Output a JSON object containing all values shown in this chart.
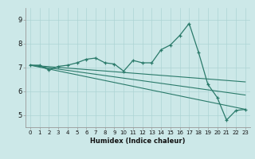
{
  "xlabel": "Humidex (Indice chaleur)",
  "background_color": "#cce8e8",
  "grid_color": "#add4d4",
  "line_color": "#2a7a6a",
  "xlim": [
    -0.5,
    23.5
  ],
  "ylim": [
    4.5,
    9.5
  ],
  "yticks": [
    5,
    6,
    7,
    8,
    9
  ],
  "xticks": [
    0,
    1,
    2,
    3,
    4,
    5,
    6,
    7,
    8,
    9,
    10,
    11,
    12,
    13,
    14,
    15,
    16,
    17,
    18,
    19,
    20,
    21,
    22,
    23
  ],
  "main_series_x": [
    0,
    1,
    2,
    3,
    4,
    5,
    6,
    7,
    8,
    9,
    10,
    11,
    12,
    13,
    14,
    15,
    16,
    17,
    18,
    19,
    20,
    21,
    22,
    23
  ],
  "main_series_y": [
    7.1,
    7.1,
    6.9,
    7.05,
    7.1,
    7.2,
    7.35,
    7.4,
    7.2,
    7.15,
    6.85,
    7.3,
    7.2,
    7.2,
    7.75,
    7.95,
    8.35,
    8.85,
    7.65,
    6.3,
    5.75,
    4.8,
    5.2,
    5.25
  ],
  "trend_lines": [
    {
      "x0": 0,
      "y0": 7.1,
      "x1": 23,
      "y1": 6.4
    },
    {
      "x0": 0,
      "y0": 7.1,
      "x1": 23,
      "y1": 5.85
    },
    {
      "x0": 0,
      "y0": 7.1,
      "x1": 23,
      "y1": 5.25
    }
  ],
  "xlabel_fontsize": 6.0,
  "tick_fontsize_x": 5.0,
  "tick_fontsize_y": 6.0
}
